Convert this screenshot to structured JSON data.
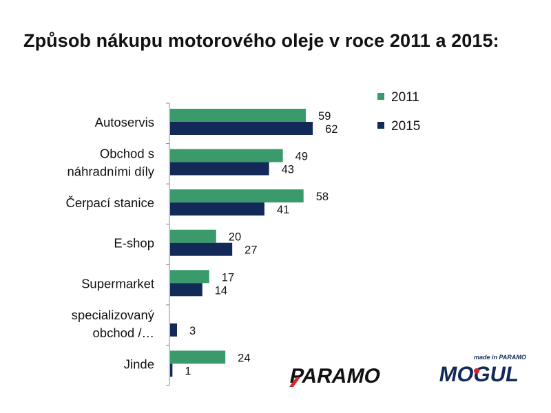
{
  "title": "Způsob nákupu motorového oleje v roce 2011 a 2015:",
  "chart_data": {
    "type": "bar",
    "orientation": "horizontal",
    "categories": [
      [
        "Autoservis"
      ],
      [
        "Obchod s",
        "náhradními díly"
      ],
      [
        "Čerpací stanice"
      ],
      [
        "E-shop"
      ],
      [
        "Supermarket"
      ],
      [
        "specializovaný",
        "obchod /…"
      ],
      [
        "Jinde"
      ]
    ],
    "series": [
      {
        "name": "2011",
        "color": "#3a9a6c",
        "values": [
          59,
          49,
          58,
          20,
          17,
          null,
          24
        ]
      },
      {
        "name": "2015",
        "color": "#132a58",
        "values": [
          62,
          43,
          41,
          27,
          14,
          3,
          1
        ]
      }
    ],
    "xlim": [
      0,
      100
    ],
    "legend_position": "top-right",
    "grid": false,
    "data_labels": true
  },
  "logos": {
    "paramo": {
      "text": "PARAMO",
      "color": "#111111",
      "accent": "#d7262e"
    },
    "mogul": {
      "tagline": "made in PARAMO",
      "text": "MOGUL",
      "color": "#132a58",
      "accent": "#d7262e"
    }
  }
}
